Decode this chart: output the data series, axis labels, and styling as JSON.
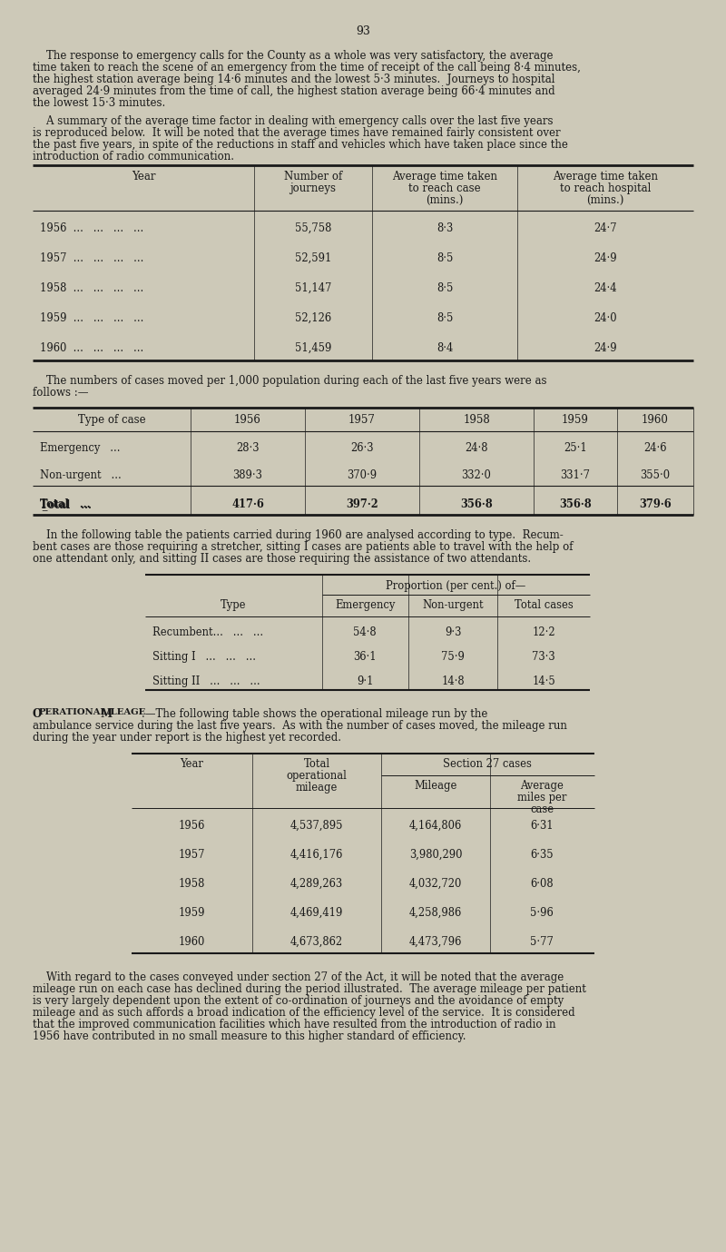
{
  "page_number": "93",
  "bg_color": "#cdc9b8",
  "text_color": "#1a1a1a",
  "table1_rows": [
    [
      "1956  ...   ...   ...   ...",
      "55,758",
      "8·3",
      "24·7"
    ],
    [
      "1957  ...   ...   ...   ...",
      "52,591",
      "8·5",
      "24·9"
    ],
    [
      "1958  ...   ...   ...   ...",
      "51,147",
      "8·5",
      "24·4"
    ],
    [
      "1959  ...   ...   ...   ...",
      "52,126",
      "8·5",
      "24·0"
    ],
    [
      "1960  ...   ...   ...   ...",
      "51,459",
      "8·4",
      "24·9"
    ]
  ],
  "table2_rows": [
    [
      "Emergency   ...",
      "28·3",
      "26·3",
      "24·8",
      "25·1",
      "24·6"
    ],
    [
      "Non-urgent   ...",
      "389·3",
      "370·9",
      "332·0",
      "331·7",
      "355·0"
    ]
  ],
  "table2_total": [
    "Total",
    "417·6",
    "397·2",
    "356·8",
    "356·8",
    "379·6"
  ],
  "table3_rows": [
    [
      "Recumbent...   ...   ...",
      "54·8",
      "9·3",
      "12·2"
    ],
    [
      "Sitting I   ...   ...   ...",
      "36·1",
      "75·9",
      "73·3"
    ],
    [
      "Sitting II   ...   ...   ...",
      "9·1",
      "14·8",
      "14·5"
    ]
  ],
  "table4_rows": [
    [
      "1956",
      "4,537,895",
      "4,164,806",
      "6·31"
    ],
    [
      "1957",
      "4,416,176",
      "3,980,290",
      "6·35"
    ],
    [
      "1958",
      "4,289,263",
      "4,032,720",
      "6·08"
    ],
    [
      "1959",
      "4,469,419",
      "4,258,986",
      "5·96"
    ],
    [
      "1960",
      "4,673,862",
      "4,473,796",
      "5·77"
    ]
  ]
}
